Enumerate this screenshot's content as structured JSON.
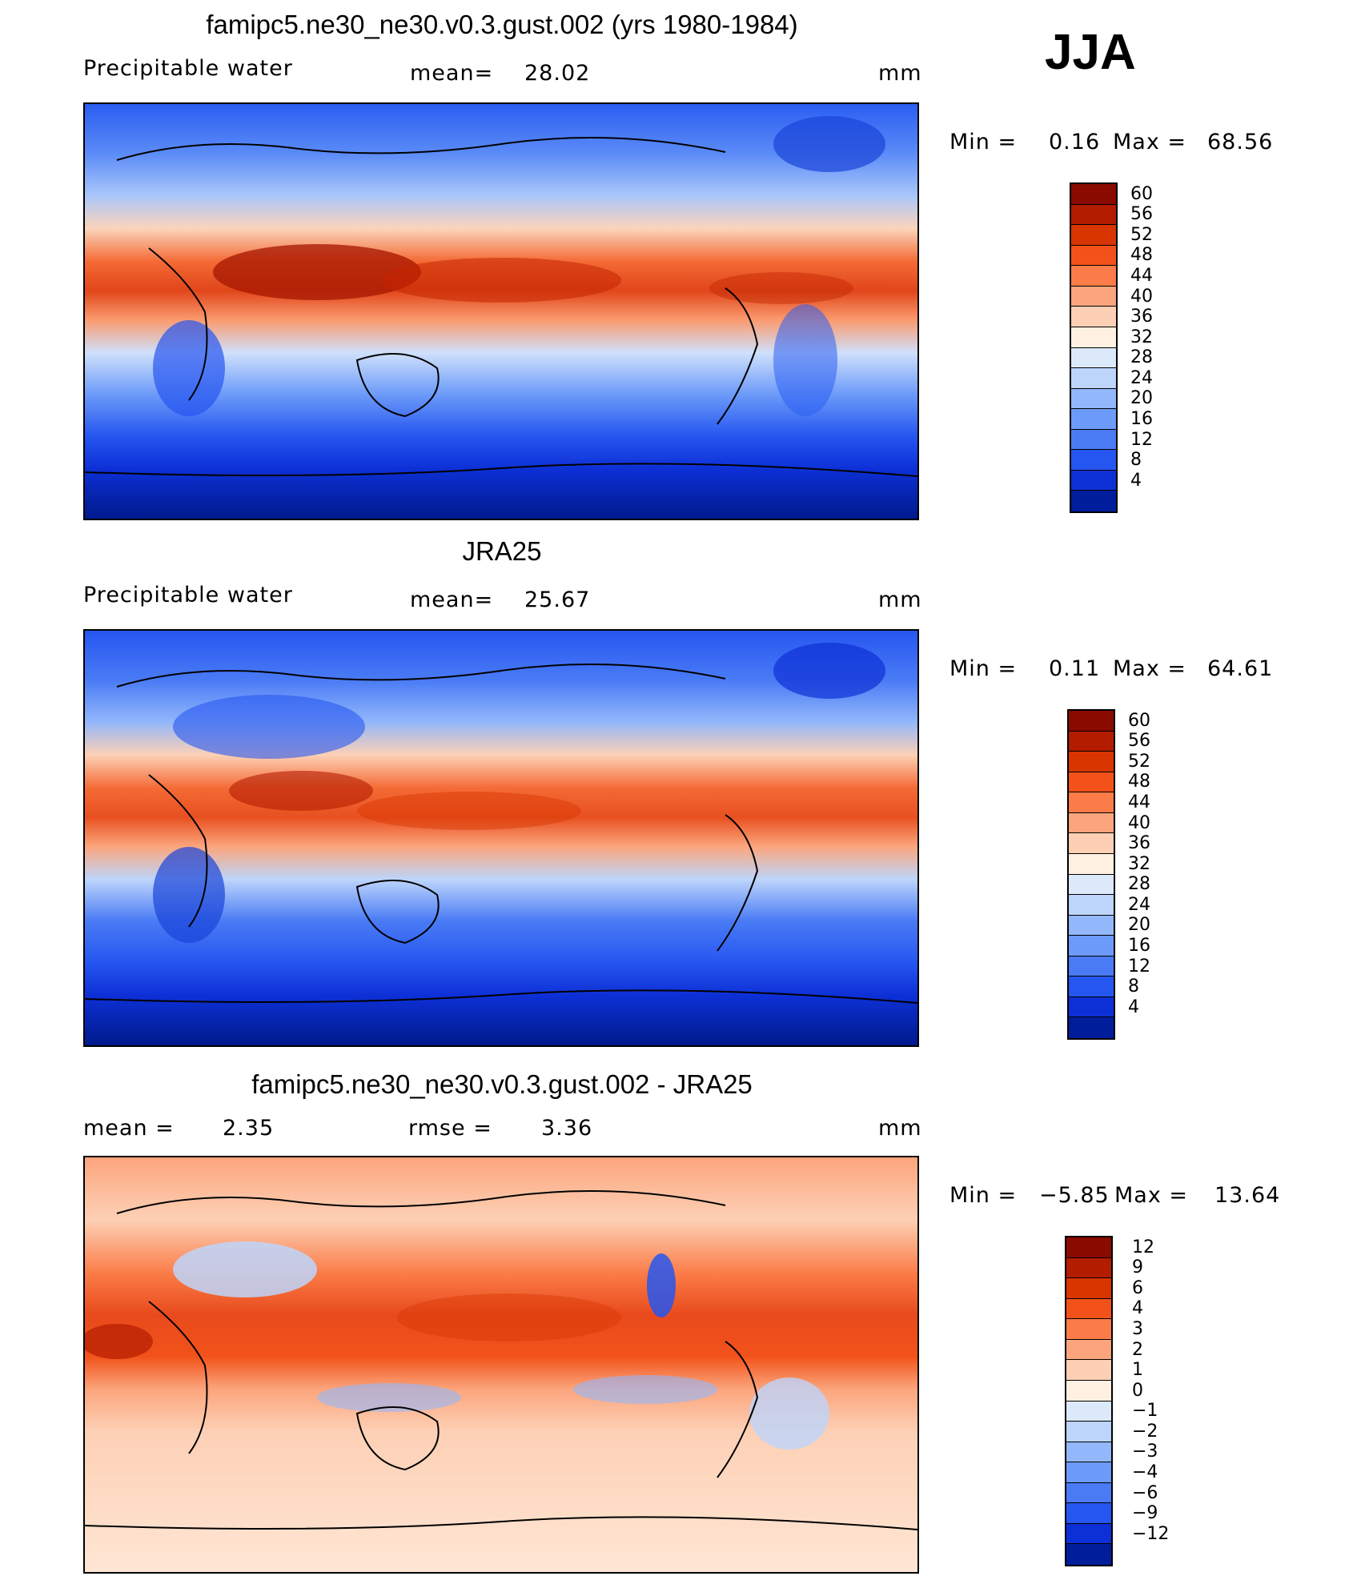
{
  "season": "JJA",
  "panels": [
    {
      "title": "famipc5.ne30_ne30.v0.3.gust.002 (yrs 1980-1984)",
      "left_label": "Precipitable  water",
      "mid_label": "mean=",
      "mid_value": "28.02",
      "units": "mm",
      "min_label": "Min  =",
      "min_value": "0.16",
      "max_label": "Max  =",
      "max_value": "68.56",
      "colorbar": {
        "levels": [
          "60",
          "56",
          "52",
          "48",
          "44",
          "40",
          "36",
          "32",
          "28",
          "24",
          "20",
          "16",
          "12",
          "8",
          "4"
        ],
        "colors": [
          "#8b0a00",
          "#b41c00",
          "#d83500",
          "#f2521a",
          "#fb7c48",
          "#fca57d",
          "#fdd0b5",
          "#fff0e2",
          "#dce9fb",
          "#bdd5fb",
          "#93b7fb",
          "#6c9bf9",
          "#4a7bf5",
          "#2656f0",
          "#0d30d6",
          "#001d9c"
        ]
      }
    },
    {
      "title": "JRA25",
      "left_label": "Precipitable  water",
      "mid_label": "mean=",
      "mid_value": "25.67",
      "units": "mm",
      "min_label": "Min  =",
      "min_value": "0.11",
      "max_label": "Max  =",
      "max_value": "64.61",
      "colorbar": {
        "levels": [
          "60",
          "56",
          "52",
          "48",
          "44",
          "40",
          "36",
          "32",
          "28",
          "24",
          "20",
          "16",
          "12",
          "8",
          "4"
        ],
        "colors": [
          "#8b0a00",
          "#b41c00",
          "#d83500",
          "#f2521a",
          "#fb7c48",
          "#fca57d",
          "#fdd0b5",
          "#fff0e2",
          "#dce9fb",
          "#bdd5fb",
          "#93b7fb",
          "#6c9bf9",
          "#4a7bf5",
          "#2656f0",
          "#0d30d6",
          "#001d9c"
        ]
      }
    },
    {
      "title": "famipc5.ne30_ne30.v0.3.gust.002 - JRA25",
      "left_label": "mean  =",
      "left_value": "2.35",
      "mid_label": "rmse  =",
      "mid_value": "3.36",
      "units": "mm",
      "min_label": "Min  =",
      "min_value": "−5.85",
      "max_label": "Max  =",
      "max_value": "13.64",
      "colorbar": {
        "levels": [
          "12",
          "9",
          "6",
          "4",
          "3",
          "2",
          "1",
          "0",
          "−1",
          "−2",
          "−3",
          "−4",
          "−6",
          "−9",
          "−12"
        ],
        "colors": [
          "#8b0a00",
          "#b41c00",
          "#d83500",
          "#f2521a",
          "#fb7c48",
          "#fca57d",
          "#fdd0b5",
          "#fff0e2",
          "#dce9fb",
          "#bdd5fb",
          "#93b7fb",
          "#6c9bf9",
          "#4a7bf5",
          "#2656f0",
          "#0d30d6",
          "#001d9c"
        ]
      }
    }
  ]
}
